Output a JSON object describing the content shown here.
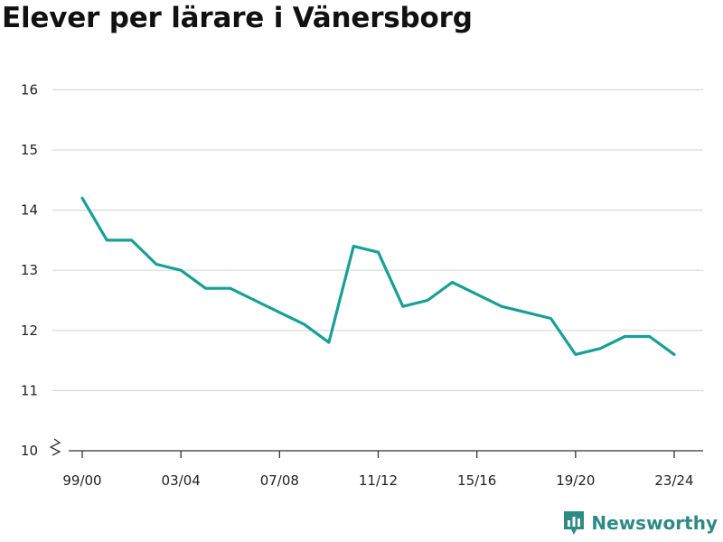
{
  "title": "Elever per lärare i Vänersborg",
  "brand": {
    "name": "Newsworthy",
    "color": "#2e8b84",
    "icon": "newsworthy-logo-icon"
  },
  "chart_data": {
    "type": "line",
    "title": "Elever per lärare i Vänersborg",
    "xlabel": "",
    "ylabel": "",
    "ylim": [
      10,
      16.5
    ],
    "yticks": [
      10,
      11,
      12,
      13,
      14,
      15,
      16
    ],
    "y_axis_break": true,
    "grid": true,
    "x": [
      "99/00",
      "00/01",
      "01/02",
      "02/03",
      "03/04",
      "04/05",
      "05/06",
      "06/07",
      "07/08",
      "08/09",
      "09/10",
      "10/11",
      "11/12",
      "12/13",
      "13/14",
      "14/15",
      "15/16",
      "16/17",
      "17/18",
      "18/19",
      "19/20",
      "20/21",
      "21/22",
      "22/23",
      "23/24"
    ],
    "xtick_labels": [
      "99/00",
      "03/04",
      "07/08",
      "11/12",
      "15/16",
      "19/20",
      "23/24"
    ],
    "series": [
      {
        "name": "",
        "color": "#16a096",
        "values": [
          14.2,
          13.5,
          13.5,
          13.1,
          13.0,
          12.7,
          12.7,
          12.5,
          12.3,
          12.1,
          11.8,
          13.4,
          13.3,
          12.4,
          12.5,
          12.8,
          12.6,
          12.4,
          12.3,
          12.2,
          11.6,
          11.7,
          11.9,
          11.9,
          11.6
        ]
      }
    ]
  }
}
